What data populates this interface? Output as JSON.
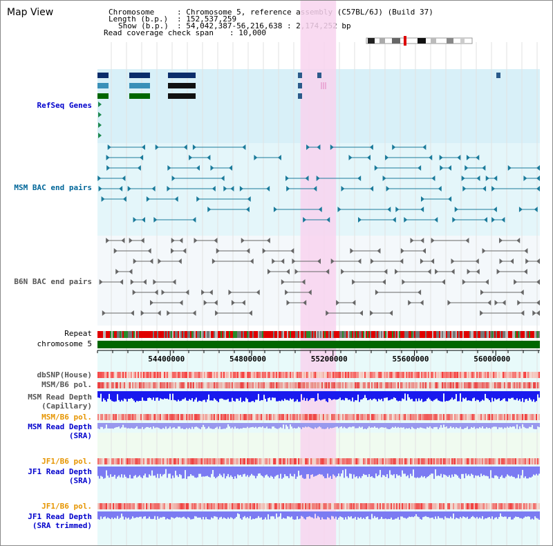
{
  "title": "Map View",
  "info": {
    "chromosome_key": "Chromosome",
    "chromosome_value": ": Chromosome 5, reference assembly (C57BL/6J) (Build 37)",
    "length_key": "Length (b.p.)",
    "length_value": ": 152,537,259",
    "show_key": "Show (b.p.)",
    "show_value": ": 54,042,387-56,216,638 : 2,174,252 bp",
    "coverage_key": "Read coverage check span",
    "coverage_value": ": 10,000"
  },
  "tracks": {
    "refseq": "RefSeq Genes",
    "msm_bac": "MSM BAC end pairs",
    "b6n_bac": "B6N BAC end pairs",
    "repeat": "Repeat",
    "chromosome": "chromosome 5",
    "dbsnp": "dbSNP(House)",
    "msm_pol": "MSM/B6 pol.",
    "msm_depth_cap_1": "MSM Read Depth",
    "msm_depth_cap_2": "(Capillary)",
    "msm_pol_2": "MSM/B6 pol.",
    "msm_depth_sra_1": "MSM Read Depth",
    "msm_depth_sra_2": "(SRA)",
    "jf1_pol": "JF1/B6 pol.",
    "jf1_depth_1": "JF1 Read Depth",
    "jf1_depth_2": "(SRA)",
    "jf1_pol_2": "JF1/B6 pol.",
    "jf1_trim_1": "JF1 Read Depth",
    "jf1_trim_2": "(SRA trimmed)"
  },
  "axis": {
    "ticks": [
      "54400000",
      "54800000",
      "55200000",
      "55600000",
      "56000000"
    ],
    "tick_values": [
      54400000,
      54800000,
      55200000,
      55600000,
      56000000
    ],
    "start": 54042387,
    "end": 56216638
  },
  "highlight": {
    "start": 55040000,
    "end": 55215000
  },
  "colors": {
    "refseq_bg": "#d8f0f8",
    "bac_bg": "#e4f6fa",
    "b6n_bg": "#f4f8fb",
    "highlight": "#f8d4ee",
    "chromosome": "#006600",
    "depth": "#1a1aee",
    "depth_light": "#7b7bf2",
    "pol": "#f06060",
    "teal": "#1a7a9a",
    "gray": "#666666"
  }
}
